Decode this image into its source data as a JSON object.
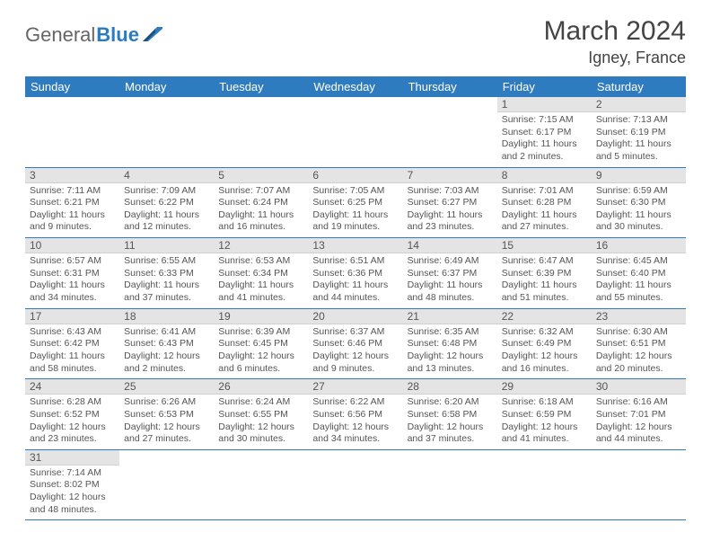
{
  "brand": {
    "part1": "General",
    "part2": "Blue"
  },
  "title": "March 2024",
  "location": "Igney, France",
  "colors": {
    "header_bg": "#2f7bbf",
    "header_text": "#ffffff",
    "daynum_bg": "#e4e4e4",
    "row_border": "#2f7bbf",
    "text": "#555555"
  },
  "calendar": {
    "type": "table",
    "columns": [
      "Sunday",
      "Monday",
      "Tuesday",
      "Wednesday",
      "Thursday",
      "Friday",
      "Saturday"
    ],
    "weeks": [
      [
        null,
        null,
        null,
        null,
        null,
        {
          "day": "1",
          "sunrise": "Sunrise: 7:15 AM",
          "sunset": "Sunset: 6:17 PM",
          "daylight": "Daylight: 11 hours and 2 minutes."
        },
        {
          "day": "2",
          "sunrise": "Sunrise: 7:13 AM",
          "sunset": "Sunset: 6:19 PM",
          "daylight": "Daylight: 11 hours and 5 minutes."
        }
      ],
      [
        {
          "day": "3",
          "sunrise": "Sunrise: 7:11 AM",
          "sunset": "Sunset: 6:21 PM",
          "daylight": "Daylight: 11 hours and 9 minutes."
        },
        {
          "day": "4",
          "sunrise": "Sunrise: 7:09 AM",
          "sunset": "Sunset: 6:22 PM",
          "daylight": "Daylight: 11 hours and 12 minutes."
        },
        {
          "day": "5",
          "sunrise": "Sunrise: 7:07 AM",
          "sunset": "Sunset: 6:24 PM",
          "daylight": "Daylight: 11 hours and 16 minutes."
        },
        {
          "day": "6",
          "sunrise": "Sunrise: 7:05 AM",
          "sunset": "Sunset: 6:25 PM",
          "daylight": "Daylight: 11 hours and 19 minutes."
        },
        {
          "day": "7",
          "sunrise": "Sunrise: 7:03 AM",
          "sunset": "Sunset: 6:27 PM",
          "daylight": "Daylight: 11 hours and 23 minutes."
        },
        {
          "day": "8",
          "sunrise": "Sunrise: 7:01 AM",
          "sunset": "Sunset: 6:28 PM",
          "daylight": "Daylight: 11 hours and 27 minutes."
        },
        {
          "day": "9",
          "sunrise": "Sunrise: 6:59 AM",
          "sunset": "Sunset: 6:30 PM",
          "daylight": "Daylight: 11 hours and 30 minutes."
        }
      ],
      [
        {
          "day": "10",
          "sunrise": "Sunrise: 6:57 AM",
          "sunset": "Sunset: 6:31 PM",
          "daylight": "Daylight: 11 hours and 34 minutes."
        },
        {
          "day": "11",
          "sunrise": "Sunrise: 6:55 AM",
          "sunset": "Sunset: 6:33 PM",
          "daylight": "Daylight: 11 hours and 37 minutes."
        },
        {
          "day": "12",
          "sunrise": "Sunrise: 6:53 AM",
          "sunset": "Sunset: 6:34 PM",
          "daylight": "Daylight: 11 hours and 41 minutes."
        },
        {
          "day": "13",
          "sunrise": "Sunrise: 6:51 AM",
          "sunset": "Sunset: 6:36 PM",
          "daylight": "Daylight: 11 hours and 44 minutes."
        },
        {
          "day": "14",
          "sunrise": "Sunrise: 6:49 AM",
          "sunset": "Sunset: 6:37 PM",
          "daylight": "Daylight: 11 hours and 48 minutes."
        },
        {
          "day": "15",
          "sunrise": "Sunrise: 6:47 AM",
          "sunset": "Sunset: 6:39 PM",
          "daylight": "Daylight: 11 hours and 51 minutes."
        },
        {
          "day": "16",
          "sunrise": "Sunrise: 6:45 AM",
          "sunset": "Sunset: 6:40 PM",
          "daylight": "Daylight: 11 hours and 55 minutes."
        }
      ],
      [
        {
          "day": "17",
          "sunrise": "Sunrise: 6:43 AM",
          "sunset": "Sunset: 6:42 PM",
          "daylight": "Daylight: 11 hours and 58 minutes."
        },
        {
          "day": "18",
          "sunrise": "Sunrise: 6:41 AM",
          "sunset": "Sunset: 6:43 PM",
          "daylight": "Daylight: 12 hours and 2 minutes."
        },
        {
          "day": "19",
          "sunrise": "Sunrise: 6:39 AM",
          "sunset": "Sunset: 6:45 PM",
          "daylight": "Daylight: 12 hours and 6 minutes."
        },
        {
          "day": "20",
          "sunrise": "Sunrise: 6:37 AM",
          "sunset": "Sunset: 6:46 PM",
          "daylight": "Daylight: 12 hours and 9 minutes."
        },
        {
          "day": "21",
          "sunrise": "Sunrise: 6:35 AM",
          "sunset": "Sunset: 6:48 PM",
          "daylight": "Daylight: 12 hours and 13 minutes."
        },
        {
          "day": "22",
          "sunrise": "Sunrise: 6:32 AM",
          "sunset": "Sunset: 6:49 PM",
          "daylight": "Daylight: 12 hours and 16 minutes."
        },
        {
          "day": "23",
          "sunrise": "Sunrise: 6:30 AM",
          "sunset": "Sunset: 6:51 PM",
          "daylight": "Daylight: 12 hours and 20 minutes."
        }
      ],
      [
        {
          "day": "24",
          "sunrise": "Sunrise: 6:28 AM",
          "sunset": "Sunset: 6:52 PM",
          "daylight": "Daylight: 12 hours and 23 minutes."
        },
        {
          "day": "25",
          "sunrise": "Sunrise: 6:26 AM",
          "sunset": "Sunset: 6:53 PM",
          "daylight": "Daylight: 12 hours and 27 minutes."
        },
        {
          "day": "26",
          "sunrise": "Sunrise: 6:24 AM",
          "sunset": "Sunset: 6:55 PM",
          "daylight": "Daylight: 12 hours and 30 minutes."
        },
        {
          "day": "27",
          "sunrise": "Sunrise: 6:22 AM",
          "sunset": "Sunset: 6:56 PM",
          "daylight": "Daylight: 12 hours and 34 minutes."
        },
        {
          "day": "28",
          "sunrise": "Sunrise: 6:20 AM",
          "sunset": "Sunset: 6:58 PM",
          "daylight": "Daylight: 12 hours and 37 minutes."
        },
        {
          "day": "29",
          "sunrise": "Sunrise: 6:18 AM",
          "sunset": "Sunset: 6:59 PM",
          "daylight": "Daylight: 12 hours and 41 minutes."
        },
        {
          "day": "30",
          "sunrise": "Sunrise: 6:16 AM",
          "sunset": "Sunset: 7:01 PM",
          "daylight": "Daylight: 12 hours and 44 minutes."
        }
      ],
      [
        {
          "day": "31",
          "sunrise": "Sunrise: 7:14 AM",
          "sunset": "Sunset: 8:02 PM",
          "daylight": "Daylight: 12 hours and 48 minutes."
        },
        null,
        null,
        null,
        null,
        null,
        null
      ]
    ]
  }
}
